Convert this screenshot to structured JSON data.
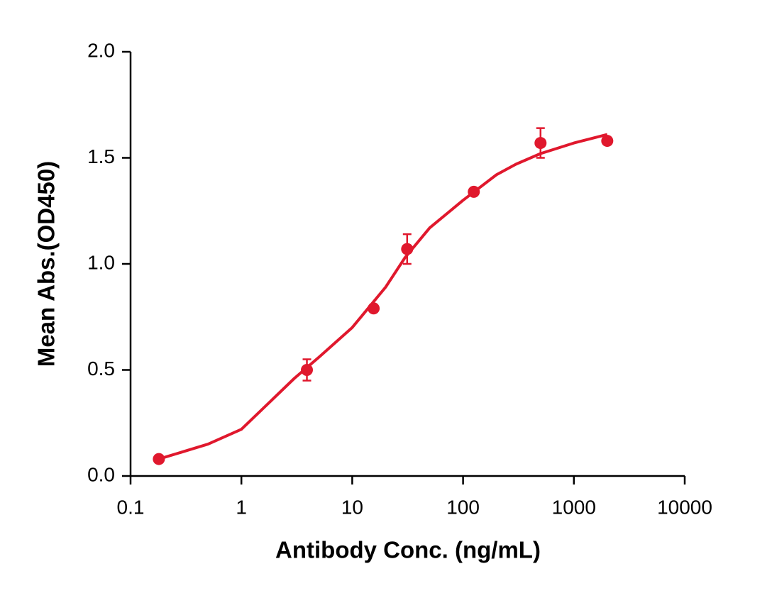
{
  "chart_data": {
    "type": "scatter",
    "x_label": "Antibody Conc. (ng/mL)",
    "y_label": "Mean Abs.(OD450)",
    "xscale": "log",
    "xlim": [
      0.1,
      10000
    ],
    "xticks": [
      0.1,
      1,
      10,
      100,
      1000,
      10000
    ],
    "ylim": [
      0,
      2
    ],
    "yticks": [
      {
        "value": 0,
        "label": "0.0"
      },
      0.5,
      {
        "value": 1,
        "label": "1.0"
      },
      1.5,
      {
        "value": 2,
        "label": "2.0"
      }
    ],
    "color": "#e0182d",
    "series": [
      {
        "kind": "points",
        "x": [
          0.18,
          3.9,
          15.6,
          31.3,
          125,
          500,
          2000
        ],
        "values": [
          0.08,
          0.5,
          0.79,
          1.07,
          1.34,
          1.57,
          1.58
        ],
        "errors": [
          0,
          0.05,
          0,
          0.07,
          0,
          0.07,
          0
        ]
      },
      {
        "kind": "fit",
        "x": [
          0.18,
          0.5,
          1,
          3,
          5,
          10,
          20,
          30,
          50,
          100,
          200,
          300,
          500,
          1000,
          2000
        ],
        "values": [
          0.08,
          0.15,
          0.22,
          0.46,
          0.56,
          0.7,
          0.89,
          1.03,
          1.17,
          1.3,
          1.42,
          1.47,
          1.52,
          1.57,
          1.61
        ]
      }
    ]
  }
}
